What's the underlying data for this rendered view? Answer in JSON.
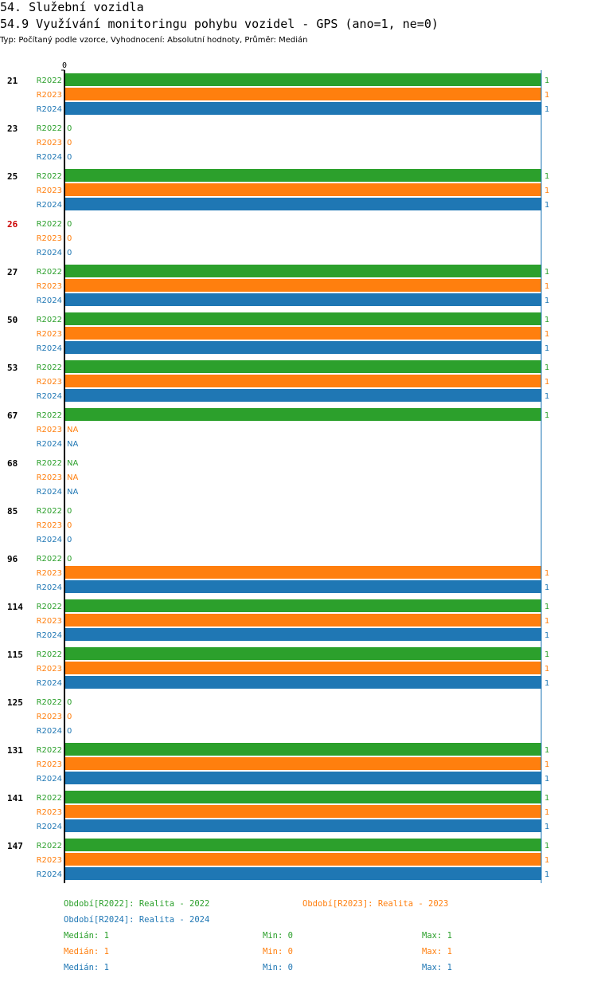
{
  "header": {
    "title": "54. Služební vozidla",
    "subtitle": "54.9 Využívání monitoringu pohybu vozidel - GPS (ano=1, ne=0)",
    "info": "Typ: Počítaný podle vzorce, Vyhodnocení: Absolutní hodnoty, Průměr: Medián"
  },
  "colors": {
    "R2022": "#2ca02c",
    "R2023": "#ff7f0e",
    "R2024": "#1f77b4",
    "highlight": "#cc0000"
  },
  "chart_data": {
    "type": "bar",
    "orientation": "horizontal",
    "xlim": [
      0,
      1
    ],
    "x_tick_labels": [
      "0"
    ],
    "series_names": [
      "R2022",
      "R2023",
      "R2024"
    ],
    "groups": [
      {
        "label": "21",
        "highlight": false,
        "values": [
          1,
          1,
          1
        ]
      },
      {
        "label": "23",
        "highlight": false,
        "values": [
          0,
          0,
          0
        ]
      },
      {
        "label": "25",
        "highlight": false,
        "values": [
          1,
          1,
          1
        ]
      },
      {
        "label": "26",
        "highlight": true,
        "values": [
          0,
          0,
          0
        ]
      },
      {
        "label": "27",
        "highlight": false,
        "values": [
          1,
          1,
          1
        ]
      },
      {
        "label": "50",
        "highlight": false,
        "values": [
          1,
          1,
          1
        ]
      },
      {
        "label": "53",
        "highlight": false,
        "values": [
          1,
          1,
          1
        ]
      },
      {
        "label": "67",
        "highlight": false,
        "values": [
          1,
          "NA",
          "NA"
        ]
      },
      {
        "label": "68",
        "highlight": false,
        "values": [
          "NA",
          "NA",
          "NA"
        ]
      },
      {
        "label": "85",
        "highlight": false,
        "values": [
          0,
          0,
          0
        ]
      },
      {
        "label": "96",
        "highlight": false,
        "values": [
          0,
          1,
          1
        ]
      },
      {
        "label": "114",
        "highlight": false,
        "values": [
          1,
          1,
          1
        ]
      },
      {
        "label": "115",
        "highlight": false,
        "values": [
          1,
          1,
          1
        ]
      },
      {
        "label": "125",
        "highlight": false,
        "values": [
          0,
          0,
          0
        ]
      },
      {
        "label": "131",
        "highlight": false,
        "values": [
          1,
          1,
          1
        ]
      },
      {
        "label": "141",
        "highlight": false,
        "values": [
          1,
          1,
          1
        ]
      },
      {
        "label": "147",
        "highlight": false,
        "values": [
          1,
          1,
          1
        ]
      }
    ]
  },
  "legend": {
    "periods": [
      {
        "series": "R2022",
        "text": "Období[R2022]: Realita - 2022"
      },
      {
        "series": "R2023",
        "text": "Období[R2023]: Realita - 2023"
      },
      {
        "series": "R2024",
        "text": "Období[R2024]: Realita - 2024"
      }
    ],
    "stats": [
      {
        "series": "R2022",
        "median": "Medián: 1",
        "min": "Min: 0",
        "max": "Max: 1"
      },
      {
        "series": "R2023",
        "median": "Medián: 1",
        "min": "Min: 0",
        "max": "Max: 1"
      },
      {
        "series": "R2024",
        "median": "Medián: 1",
        "min": "Min: 0",
        "max": "Max: 1"
      }
    ]
  }
}
